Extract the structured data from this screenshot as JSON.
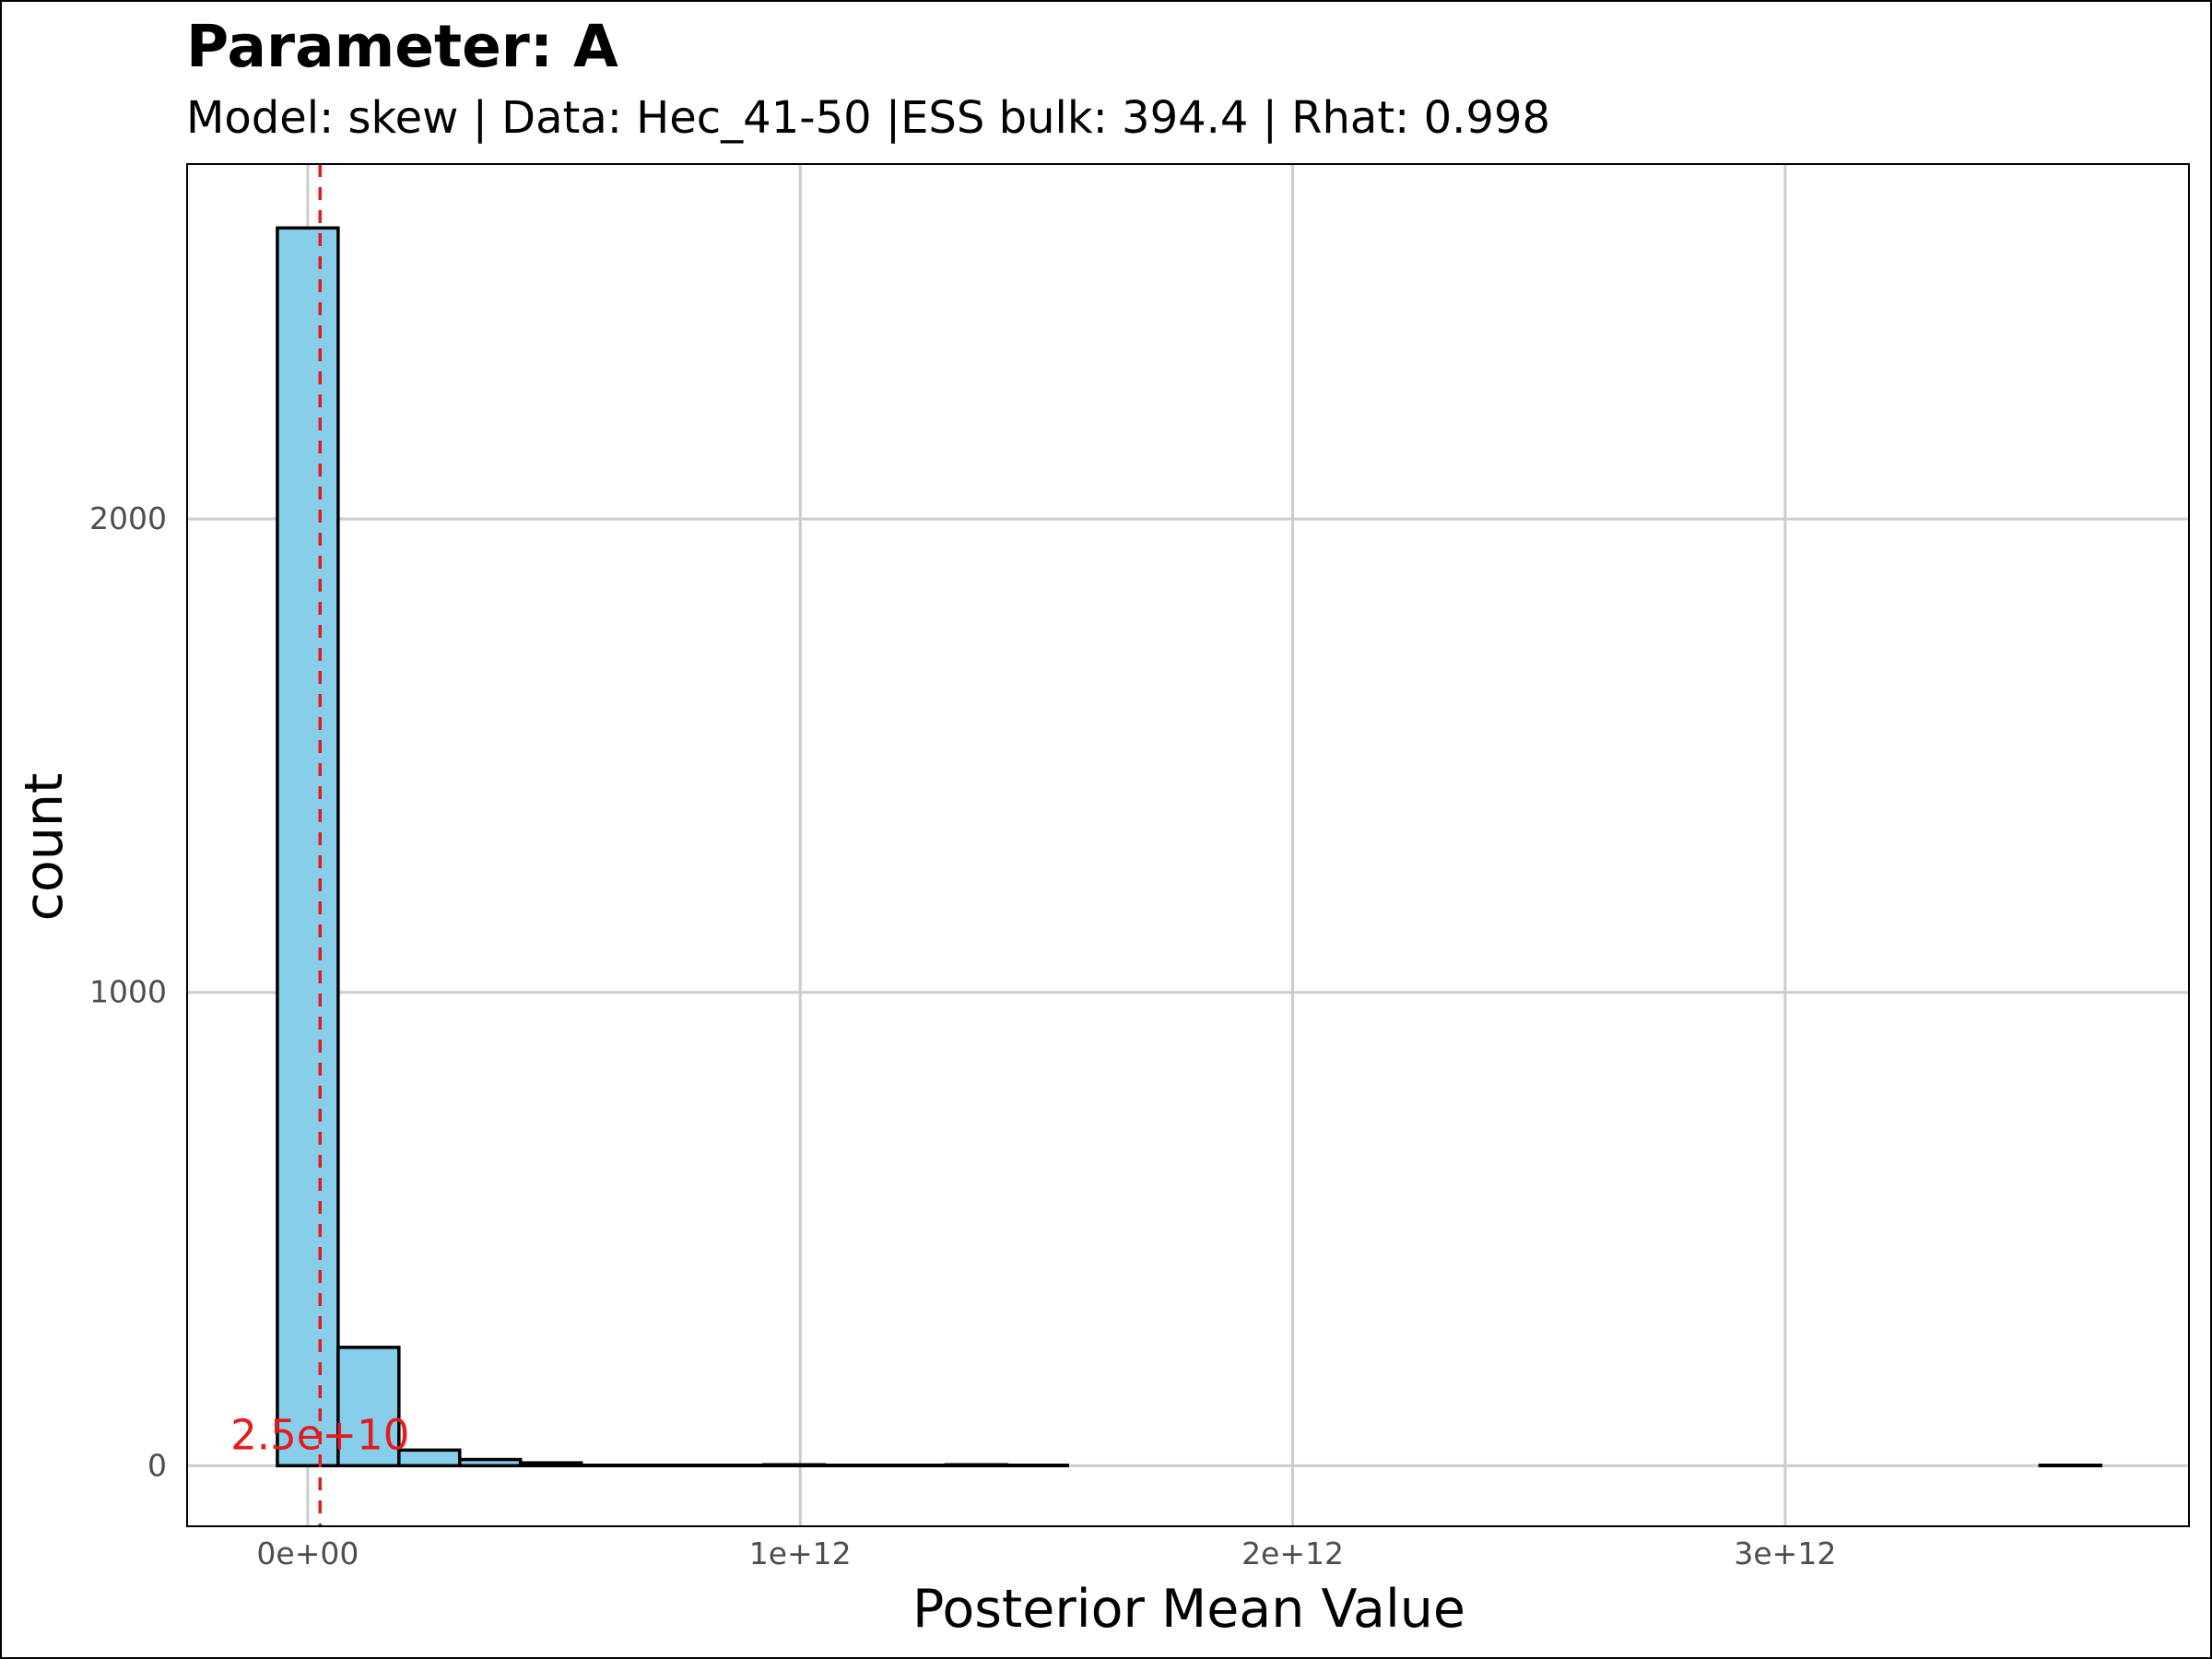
{
  "chart_data": {
    "type": "bar",
    "title": "Parameter: A",
    "subtitle": "Model: skew | Data: Hec_41-50 |ESS bulk: 394.4 | Rhat: 0.998",
    "xlabel": "Posterior Mean Value",
    "ylabel": "count",
    "xlim": [
      -245000000000.0,
      3820000000000.0
    ],
    "ylim": [
      -128,
      2750
    ],
    "x_ticks": [
      {
        "value": 0,
        "label": "0e+00"
      },
      {
        "value": 1000000000000.0,
        "label": "1e+12"
      },
      {
        "value": 2000000000000.0,
        "label": "2e+12"
      },
      {
        "value": 3000000000000.0,
        "label": "3e+12"
      }
    ],
    "y_ticks": [
      {
        "value": 0,
        "label": "0"
      },
      {
        "value": 1000,
        "label": "1000"
      },
      {
        "value": 2000,
        "label": "2000"
      }
    ],
    "bin_width": 123420000000.0,
    "bins": [
      {
        "x0": -61710000000.0,
        "count": 2615
      },
      {
        "x0": 61710000000.0,
        "count": 250
      },
      {
        "x0": 185130000000.0,
        "count": 33
      },
      {
        "x0": 308550000000.0,
        "count": 13
      },
      {
        "x0": 431970000000.0,
        "count": 6
      },
      {
        "x0": 555390000000.0,
        "count": 1
      },
      {
        "x0": 678810000000.0,
        "count": 1
      },
      {
        "x0": 802230000000.0,
        "count": 1
      },
      {
        "x0": 925650000000.0,
        "count": 2
      },
      {
        "x0": 1049070000000.0,
        "count": 1
      },
      {
        "x0": 1172490000000.0,
        "count": 1
      },
      {
        "x0": 1295910000000.0,
        "count": 2
      },
      {
        "x0": 1419330000000.0,
        "count": 1
      },
      {
        "x0": 1542750000000.0,
        "count": 0
      },
      {
        "x0": 1666170000000.0,
        "count": 0
      },
      {
        "x0": 1789590000000.0,
        "count": 0
      },
      {
        "x0": 1913010000000.0,
        "count": 0
      },
      {
        "x0": 2036430000000.0,
        "count": 0
      },
      {
        "x0": 2159850000000.0,
        "count": 0
      },
      {
        "x0": 2283270000000.0,
        "count": 0
      },
      {
        "x0": 2406690000000.0,
        "count": 0
      },
      {
        "x0": 2530110000000.0,
        "count": 0
      },
      {
        "x0": 2653530000000.0,
        "count": 0
      },
      {
        "x0": 2776950000000.0,
        "count": 0
      },
      {
        "x0": 2900370000000.0,
        "count": 0
      },
      {
        "x0": 3023790000000.0,
        "count": 0
      },
      {
        "x0": 3147210000000.0,
        "count": 0
      },
      {
        "x0": 3270630000000.0,
        "count": 0
      },
      {
        "x0": 3394050000000.0,
        "count": 0
      },
      {
        "x0": 3517470000000.0,
        "count": 1
      }
    ],
    "reference_line": {
      "value": 25000000000.0,
      "label": "2.5e+10",
      "style": "dashed"
    },
    "colors": {
      "bar_fill": "#87CEEB",
      "bar_outline": "#000000",
      "reference_line": "#E41A1C",
      "grid": "#CCCCCC"
    },
    "grid": true,
    "legend": "none"
  }
}
